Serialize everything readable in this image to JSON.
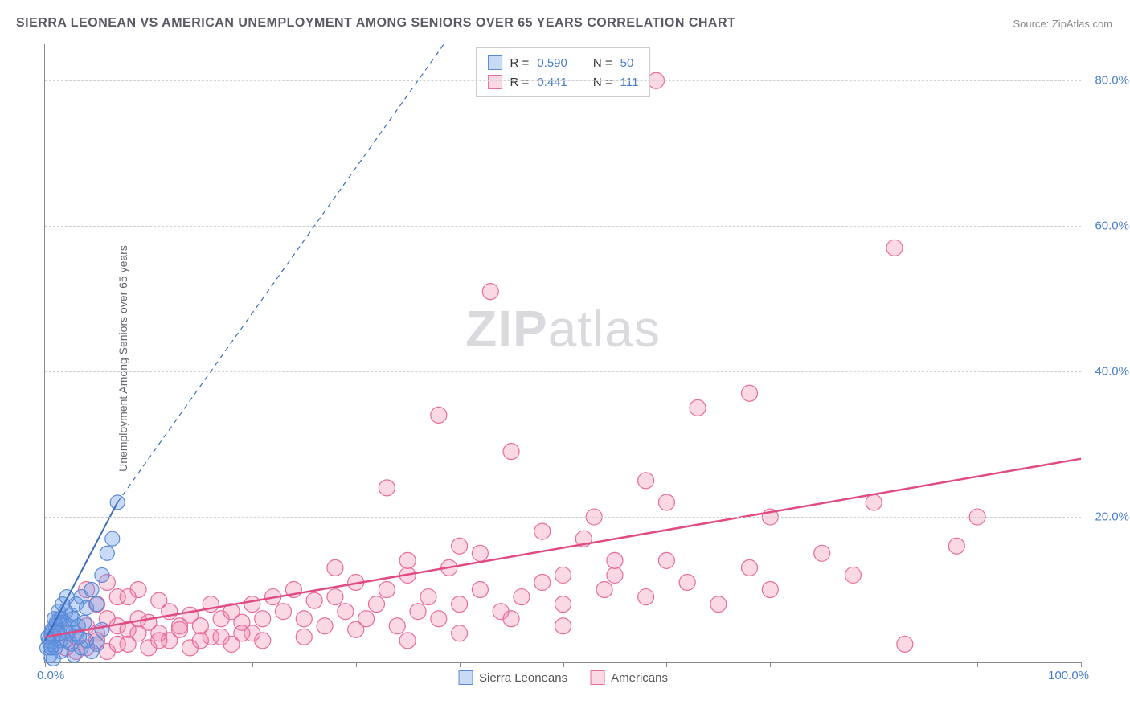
{
  "title": "SIERRA LEONEAN VS AMERICAN UNEMPLOYMENT AMONG SENIORS OVER 65 YEARS CORRELATION CHART",
  "source": "Source: ZipAtlas.com",
  "y_axis_label": "Unemployment Among Seniors over 65 years",
  "watermark_bold": "ZIP",
  "watermark_rest": "atlas",
  "chart": {
    "type": "scatter",
    "xlim": [
      0,
      100
    ],
    "ylim": [
      0,
      85
    ],
    "x_tick_positions": [
      0,
      10,
      20,
      30,
      40,
      50,
      60,
      70,
      80,
      90,
      100
    ],
    "y_ticks": [
      {
        "v": 20,
        "label": "20.0%"
      },
      {
        "v": 40,
        "label": "40.0%"
      },
      {
        "v": 60,
        "label": "60.0%"
      },
      {
        "v": 80,
        "label": "80.0%"
      }
    ],
    "x_origin_label": "0.0%",
    "x_max_label": "100.0%",
    "grid_color": "#d0d0d0",
    "background_color": "#ffffff",
    "series": [
      {
        "name": "Sierra Leoneans",
        "color_fill": "rgba(100,150,230,0.35)",
        "color_stroke": "#5a8ad4",
        "marker_radius": 9,
        "R": "0.590",
        "N": "50",
        "trend": {
          "x1": 0,
          "y1": 3,
          "x2": 7,
          "y2": 22,
          "dash_x2": 38.5,
          "dash_y2": 85,
          "stroke": "#3d6db8",
          "width": 2
        },
        "points": [
          [
            0.2,
            2.0
          ],
          [
            0.4,
            3.0
          ],
          [
            0.5,
            2.5
          ],
          [
            0.6,
            4.0
          ],
          [
            0.8,
            3.5
          ],
          [
            1.0,
            5.0
          ],
          [
            1.2,
            4.5
          ],
          [
            1.4,
            6.0
          ],
          [
            1.5,
            3.0
          ],
          [
            1.8,
            5.5
          ],
          [
            2.0,
            7.0
          ],
          [
            2.2,
            4.0
          ],
          [
            2.5,
            6.5
          ],
          [
            3.0,
            8.0
          ],
          [
            3.2,
            5.0
          ],
          [
            3.5,
            9.0
          ],
          [
            4.0,
            7.5
          ],
          [
            4.5,
            10.0
          ],
          [
            5.0,
            8.0
          ],
          [
            5.5,
            12.0
          ],
          [
            1.0,
            2.0
          ],
          [
            1.5,
            1.5
          ],
          [
            2.0,
            3.0
          ],
          [
            0.5,
            1.0
          ],
          [
            0.8,
            0.5
          ],
          [
            2.5,
            2.5
          ],
          [
            3.0,
            4.0
          ],
          [
            0.3,
            3.5
          ],
          [
            0.7,
            4.5
          ],
          [
            1.1,
            5.5
          ],
          [
            1.6,
            6.0
          ],
          [
            6.0,
            15.0
          ],
          [
            6.5,
            17.0
          ],
          [
            7.0,
            22.0
          ],
          [
            2.8,
            1.0
          ],
          [
            3.5,
            2.0
          ],
          [
            4.0,
            3.0
          ],
          [
            4.5,
            1.5
          ],
          [
            5.0,
            2.5
          ],
          [
            5.5,
            4.5
          ],
          [
            1.3,
            7.0
          ],
          [
            1.7,
            8.0
          ],
          [
            2.1,
            9.0
          ],
          [
            0.9,
            6.0
          ],
          [
            1.4,
            4.0
          ],
          [
            0.6,
            2.0
          ],
          [
            2.3,
            5.0
          ],
          [
            2.7,
            6.0
          ],
          [
            3.3,
            3.5
          ],
          [
            3.8,
            5.5
          ]
        ]
      },
      {
        "name": "Americans",
        "color_fill": "rgba(240,130,170,0.30)",
        "color_stroke": "#e86b9c",
        "marker_radius": 10,
        "R": "0.441",
        "N": "111",
        "trend": {
          "x1": 0,
          "y1": 3.5,
          "x2": 100,
          "y2": 28,
          "stroke": "#e04b84",
          "width": 2.5
        },
        "points": [
          [
            2,
            4
          ],
          [
            3,
            3.5
          ],
          [
            4,
            5
          ],
          [
            5,
            4
          ],
          [
            6,
            6
          ],
          [
            7,
            5
          ],
          [
            8,
            4.5
          ],
          [
            9,
            6
          ],
          [
            10,
            5.5
          ],
          [
            11,
            4
          ],
          [
            12,
            7
          ],
          [
            13,
            5
          ],
          [
            14,
            6.5
          ],
          [
            15,
            5
          ],
          [
            16,
            8
          ],
          [
            17,
            6
          ],
          [
            18,
            7
          ],
          [
            19,
            5.5
          ],
          [
            20,
            8
          ],
          [
            21,
            6
          ],
          [
            22,
            9
          ],
          [
            23,
            7
          ],
          [
            24,
            10
          ],
          [
            25,
            6
          ],
          [
            26,
            8.5
          ],
          [
            27,
            5
          ],
          [
            28,
            9
          ],
          [
            29,
            7
          ],
          [
            30,
            11
          ],
          [
            31,
            6
          ],
          [
            32,
            8
          ],
          [
            33,
            10
          ],
          [
            34,
            5
          ],
          [
            35,
            12
          ],
          [
            36,
            7
          ],
          [
            37,
            9
          ],
          [
            38,
            6
          ],
          [
            39,
            13
          ],
          [
            40,
            8
          ],
          [
            42,
            10
          ],
          [
            44,
            7
          ],
          [
            45,
            6
          ],
          [
            46,
            9
          ],
          [
            48,
            11
          ],
          [
            50,
            8
          ],
          [
            52,
            17
          ],
          [
            54,
            10
          ],
          [
            55,
            12
          ],
          [
            58,
            9
          ],
          [
            60,
            14
          ],
          [
            62,
            11
          ],
          [
            65,
            8
          ],
          [
            68,
            13
          ],
          [
            70,
            10
          ],
          [
            4,
            2
          ],
          [
            6,
            1.5
          ],
          [
            8,
            2.5
          ],
          [
            10,
            2
          ],
          [
            12,
            3
          ],
          [
            14,
            2
          ],
          [
            16,
            3.5
          ],
          [
            18,
            2.5
          ],
          [
            5,
            8
          ],
          [
            7,
            9
          ],
          [
            9,
            10
          ],
          [
            11,
            8.5
          ],
          [
            28,
            13
          ],
          [
            33,
            24
          ],
          [
            35,
            14
          ],
          [
            38,
            34
          ],
          [
            40,
            16
          ],
          [
            42,
            15
          ],
          [
            43,
            51
          ],
          [
            45,
            29
          ],
          [
            48,
            18
          ],
          [
            50,
            12
          ],
          [
            53,
            20
          ],
          [
            55,
            14
          ],
          [
            58,
            25
          ],
          [
            59,
            80
          ],
          [
            60,
            22
          ],
          [
            63,
            35
          ],
          [
            68,
            37
          ],
          [
            70,
            20
          ],
          [
            75,
            15
          ],
          [
            78,
            12
          ],
          [
            80,
            22
          ],
          [
            82,
            57
          ],
          [
            83,
            2.5
          ],
          [
            88,
            16
          ],
          [
            90,
            20
          ],
          [
            4,
            10
          ],
          [
            6,
            11
          ],
          [
            8,
            9
          ],
          [
            15,
            3
          ],
          [
            20,
            4
          ],
          [
            25,
            3.5
          ],
          [
            30,
            4.5
          ],
          [
            35,
            3
          ],
          [
            40,
            4
          ],
          [
            50,
            5
          ],
          [
            2,
            2
          ],
          [
            3,
            1.5
          ],
          [
            5,
            3
          ],
          [
            7,
            2.5
          ],
          [
            9,
            4
          ],
          [
            11,
            3
          ],
          [
            13,
            4.5
          ],
          [
            17,
            3.5
          ],
          [
            19,
            4
          ],
          [
            21,
            3
          ]
        ]
      }
    ],
    "top_legend_labels": {
      "R_prefix": "R =",
      "N_prefix": "N ="
    }
  }
}
